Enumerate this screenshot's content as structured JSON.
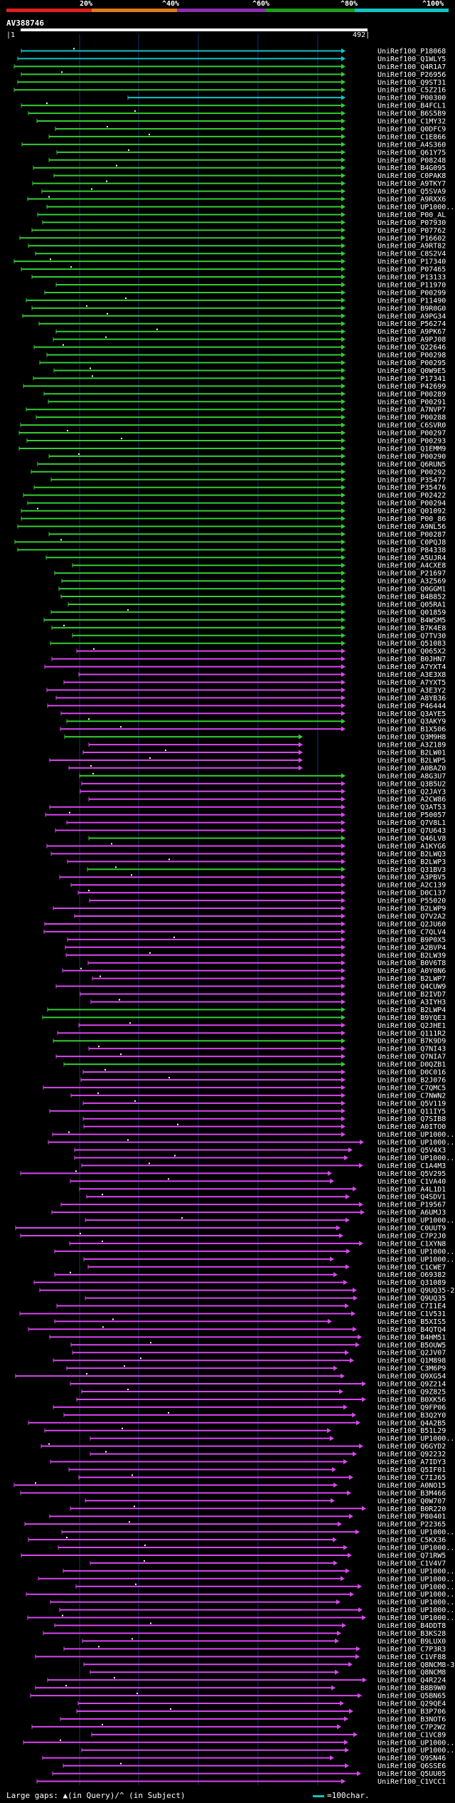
{
  "legend": {
    "labels": [
      "20%",
      "^40%",
      "^60%",
      "^80%",
      "^100%"
    ],
    "colors": [
      "#e02020",
      "#e07b1b",
      "#8b2fb0",
      "#1f9d1f",
      "#12c4c4"
    ]
  },
  "query": {
    "name": "AV388746",
    "start": "1",
    "end": "492"
  },
  "colors": {
    "cyan": "#12c4c4",
    "green": "#33cc33",
    "magenta": "#d946ef",
    "grid": "#1a2e6a"
  },
  "footer": {
    "gaps": "Large gaps: ▲(in Query)/^ (in Subject)",
    "scale": "=100char."
  },
  "rows": [
    "UniRef100_P18068",
    "UniRef100_Q1WLY5",
    "UniRef100_Q4R1A7",
    "UniRef100_P26956",
    "UniRef100_Q9ST31",
    "UniRef100_C5Z216",
    "UniRef100_P00300",
    "UniRef100_B4FCL1",
    "UniRef100_B6S5B9",
    "UniRef100_C1MY32",
    "UniRef100_Q0DFC9",
    "UniRef100_C1E866",
    "UniRef100_A4S360",
    "UniRef100_Q61Y75",
    "UniRef100_P08248",
    "UniRef100_B4G095",
    "UniRef100_C0PAK8",
    "UniRef100_A9TKY7",
    "UniRef100_Q5SVA9",
    "UniRef100_A9RXX6",
    "UniRef100_UP1000...",
    "UniRef100_P00_AL",
    "UniRef100_P07930",
    "UniRef100_P07762",
    "UniRef100_P16602",
    "UniRef100_A9RT82",
    "UniRef100_C8S2V4",
    "UniRef100_P17340",
    "UniRef100_P07465",
    "UniRef100_P13133",
    "UniRef100_P11970",
    "UniRef100_P00299",
    "UniRef100_P11490",
    "UniRef100_B9R0G0",
    "UniRef100_A9PG34",
    "UniRef100_P56274",
    "UniRef100_A9PK67",
    "UniRef100_A9PJ08",
    "UniRef100_Q22646",
    "UniRef100_P00298",
    "UniRef100_P00295",
    "UniRef100_Q0W9E5",
    "UniRef100_P17341",
    "UniRef100_P42699",
    "UniRef100_P00289",
    "UniRef100_P00291",
    "UniRef100_A7NVP7",
    "UniRef100_P00288",
    "UniRef100_C6SVR0",
    "UniRef100_P00297",
    "UniRef100_P00293",
    "UniRef100_Q1EMM9",
    "UniRef100_P00290",
    "UniRef100_Q6RUN5",
    "UniRef100_P00292",
    "UniRef100_P35477",
    "UniRef100_P35476",
    "UniRef100_P02422",
    "UniRef100_P00294",
    "UniRef100_Q01092",
    "UniRef100_P00_86",
    "UniRef100_A9NL56",
    "UniRef100_P00287",
    "UniRef100_C0PQJ8",
    "UniRef100_P84338",
    "UniRef100_A5UJR4",
    "UniRef100_A4CXE8",
    "UniRef100_P21697",
    "UniRef100_A3Z569",
    "UniRef100_Q0GGM1",
    "UniRef100_B4B852",
    "UniRef100_Q05RA1",
    "UniRef100_Q01859",
    "UniRef100_B4WSM5",
    "UniRef100_B7K4E8",
    "UniRef100_Q7TV30",
    "UniRef100_Q51083",
    "UniRef100_Q065X2",
    "UniRef100_B0JHN7",
    "UniRef100_A7YXT4",
    "UniRef100_A3E3X8",
    "UniRef100_A7YXT5",
    "UniRef100_A3E3Y2",
    "UniRef100_A8YB36",
    "UniRef100_P46444",
    "UniRef100_Q3AYE5",
    "UniRef100_Q3AKY9",
    "UniRef100_B1X506",
    "UniRef100_Q3M9H8",
    "UniRef100_A3Z189",
    "UniRef100_B2LW01",
    "UniRef100_B2LWP5",
    "UniRef100_A0BAZ0",
    "UniRef100_A8G3U7",
    "UniRef100_Q3B5U2",
    "UniRef100_Q2JAY3",
    "UniRef100_A2CW86",
    "UniRef100_Q3AT53",
    "UniRef100_P50057",
    "UniRef100_Q7V8L1",
    "UniRef100_Q7U643",
    "UniRef100_Q46LV8",
    "UniRef100_A1KYG6",
    "UniRef100_B2LWQ3",
    "UniRef100_B2LWP3",
    "UniRef100_Q31BV3",
    "UniRef100_A3PBV5",
    "UniRef100_A2C139",
    "UniRef100_D0C137",
    "UniRef100_P55020",
    "UniRef100_B2LWP9",
    "UniRef100_Q7V2A2",
    "UniRef100_Q2JU60",
    "UniRef100_C7QLV4",
    "UniRef100_B9P0X5",
    "UniRef100_A2BVP4",
    "UniRef100_B2LW39",
    "UniRef100_B0V6T8",
    "UniRef100_A0Y0N6",
    "UniRef100_B2LWP7",
    "UniRef100_Q4CUW9",
    "UniRef100_B2IVD7",
    "UniRef100_A3IYH3",
    "UniRef100_B2LWP4",
    "UniRef100_B9YQE3",
    "UniRef100_Q2JHE1",
    "UniRef100_Q111R2",
    "UniRef100_B7K9D9",
    "UniRef100_Q7NI43",
    "UniRef100_Q7NIA7",
    "UniRef100_D0QZB1",
    "UniRef100_D0C016",
    "UniRef100_B2J076",
    "UniRef100_C7QMC5",
    "UniRef100_C7NWN2",
    "UniRef100_Q5V119",
    "UniRef100_Q11IY5",
    "UniRef100_Q7SIB8",
    "UniRef100_A0ITO0",
    "UniRef100_UP1000...",
    "UniRef100_UP1000...",
    "UniRef100_Q5V4X3",
    "UniRef100_UP1000...",
    "UniRef100_C1A4M3",
    "UniRef100_Q5V295",
    "UniRef100_C1VA40",
    "UniRef100_A4L1D1",
    "UniRef100_Q4SDV1",
    "UniRef100_P19567",
    "UniRef100_A6UMJ3",
    "UniRef100_UP1000...",
    "UniRef100_C0UUT9",
    "UniRef100_C7P2J0",
    "UniRef100_C1XYN8",
    "UniRef100_UP1000...",
    "UniRef100_UP1000...",
    "UniRef100_C1CWE7",
    "UniRef100_O69382",
    "UniRef100_Q31089",
    "UniRef100_Q9UQ35-2",
    "UniRef100_Q9UQ35",
    "UniRef100_C7I1E4",
    "UniRef100_C1V531",
    "UniRef100_B5XIS5",
    "UniRef100_B4QTQ4",
    "UniRef100_B4HM51",
    "UniRef100_B5OUW5",
    "UniRef100_Q2JV07",
    "UniRef100_Q1M898",
    "UniRef100_C3M6P9",
    "UniRef100_Q9XG54",
    "UniRef100_Q9Z214",
    "UniRef100_Q9Z825",
    "UniRef100_B0XK56",
    "UniRef100_Q9FP06",
    "UniRef100_B3Q2Y0",
    "UniRef100_Q4A2B5",
    "UniRef100_B51L29",
    "UniRef100_UP1000...",
    "UniRef100_Q6GYD2",
    "UniRef100_Q92232",
    "UniRef100_A7IDY3",
    "UniRef100_Q5IF01",
    "UniRef100_C7IJ65",
    "UniRef100_A0NO15",
    "UniRef100_B3M466",
    "UniRef100_Q0W707",
    "UniRef100_B0R220",
    "UniRef100_P80401",
    "UniRef100_P22365",
    "UniRef100_UP1000...",
    "UniRef100_C5KX36",
    "UniRef100_UP1000...",
    "UniRef100_Q71RW5",
    "UniRef100_C1V4V7",
    "UniRef100_UP1000...",
    "UniRef100_UP1000...",
    "UniRef100_UP1000...",
    "UniRef100_UP1000...",
    "UniRef100_UP1000...",
    "UniRef100_UP1000...",
    "UniRef100_UP1000...",
    "UniRef100_B4DDT8",
    "UniRef100_B3KS28",
    "UniRef100_B9LUX0",
    "UniRef100_C7P3R3",
    "UniRef100_C1VF88",
    "UniRef100_Q8NCM8-3",
    "UniRef100_Q8NCM8",
    "UniRef100_Q4R224",
    "UniRef100_B8B9W0",
    "UniRef100_Q5BN65",
    "UniRef100_Q29QE4",
    "UniRef100_B3P706",
    "UniRef100_B3NOT6",
    "UniRef100_C7P2W2",
    "UniRef100_C1VC89",
    "UniRef100_UP1000...",
    "UniRef100_UP1000...",
    "UniRef100_Q9SN46",
    "UniRef100_Q6SSE6",
    "UniRef100_Q5UU05",
    "UniRef100_C1VCC1"
  ]
}
